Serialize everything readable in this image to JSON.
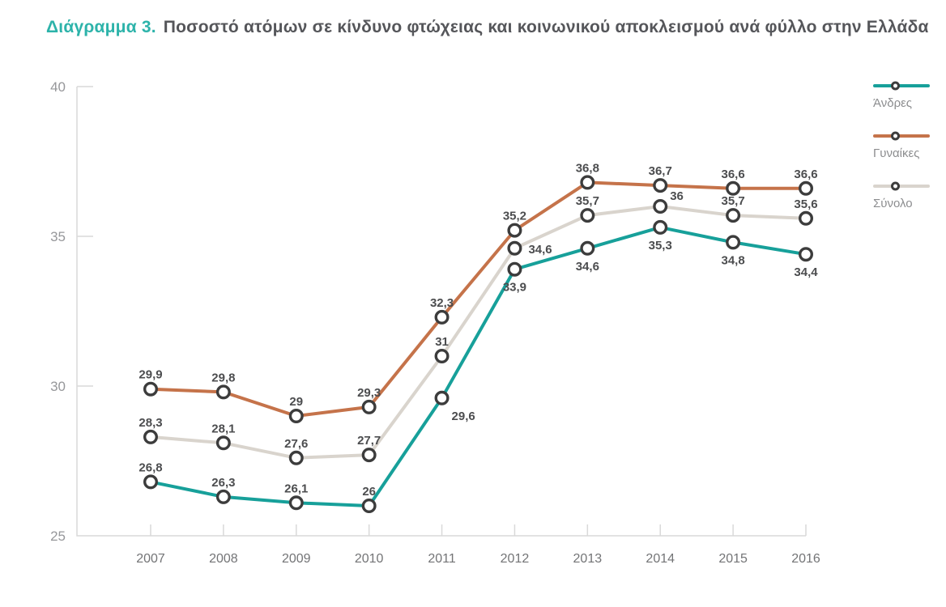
{
  "title": {
    "prefix": "Διάγραμμα 3.",
    "text": "Ποσοστό ατόμων σε κίνδυνο φτώχειας και κοινωνικού αποκλεισμού ανά φύλλο στην Ελλάδα"
  },
  "legend": {
    "items": [
      {
        "label": "Άνδρες",
        "color": "#17a09a"
      },
      {
        "label": "Γυναίκες",
        "color": "#c5734a"
      },
      {
        "label": "Σύνολο",
        "color": "#d9d4cd"
      }
    ]
  },
  "chart_data": {
    "type": "line",
    "title": "Διάγραμμα 3. Ποσοστό ατόμων σε κίνδυνο φτώχειας και κοινωνικού αποκλεισμού ανά φύλλο στην Ελλάδα",
    "x": [
      2007,
      2008,
      2009,
      2010,
      2011,
      2012,
      2013,
      2014,
      2015,
      2016
    ],
    "x_tick_labels": [
      "2007",
      "2008",
      "2009",
      "2010",
      "2011",
      "2012",
      "2013",
      "2014",
      "2015",
      "2016"
    ],
    "y_ticks": [
      40,
      35,
      30,
      25
    ],
    "y_tick_labels": [
      "40",
      "35",
      "30",
      "25"
    ],
    "ylim": [
      25,
      40
    ],
    "grid": false,
    "legend_position": "right",
    "xlabel": "",
    "ylabel": "",
    "marker": {
      "fill": "#ffffff",
      "stroke": "#3c3c3c"
    },
    "axis_color": "#d9d9d9",
    "series": [
      {
        "name": "Άνδρες",
        "color": "#17a09a",
        "values": [
          26.8,
          26.3,
          26.1,
          26,
          29.6,
          33.9,
          34.6,
          35.3,
          34.8,
          34.4
        ],
        "labels": [
          "26,8",
          "26,3",
          "26,1",
          "26",
          "29,6",
          "33,9",
          "34,6",
          "35,3",
          "34,8",
          "34,4"
        ],
        "label_pos": [
          "above",
          "above",
          "above",
          "above",
          "below-right",
          "below",
          "below",
          "below",
          "below",
          "below"
        ]
      },
      {
        "name": "Γυναίκες",
        "color": "#c5734a",
        "values": [
          29.9,
          29.8,
          29,
          29.3,
          32.3,
          35.2,
          36.8,
          36.7,
          36.6,
          36.6
        ],
        "labels": [
          "29,9",
          "29,8",
          "29",
          "29,3",
          "32,3",
          "35,2",
          "36,8",
          "36,7",
          "36,6",
          "36,6"
        ],
        "label_pos": [
          "above",
          "above",
          "above",
          "above",
          "above",
          "above",
          "above",
          "above",
          "above",
          "above"
        ]
      },
      {
        "name": "Σύνολο",
        "color": "#d9d4cd",
        "values": [
          28.3,
          28.1,
          27.6,
          27.7,
          31,
          34.6,
          35.7,
          36,
          35.7,
          35.6
        ],
        "labels": [
          "28,3",
          "28,1",
          "27,6",
          "27,7",
          "31",
          "34,6",
          "35,7",
          "36",
          "35,7",
          "35,6"
        ],
        "label_pos": [
          "above",
          "above",
          "above",
          "above",
          "above",
          "right",
          "above",
          "above-right",
          "above",
          "above"
        ]
      }
    ]
  }
}
